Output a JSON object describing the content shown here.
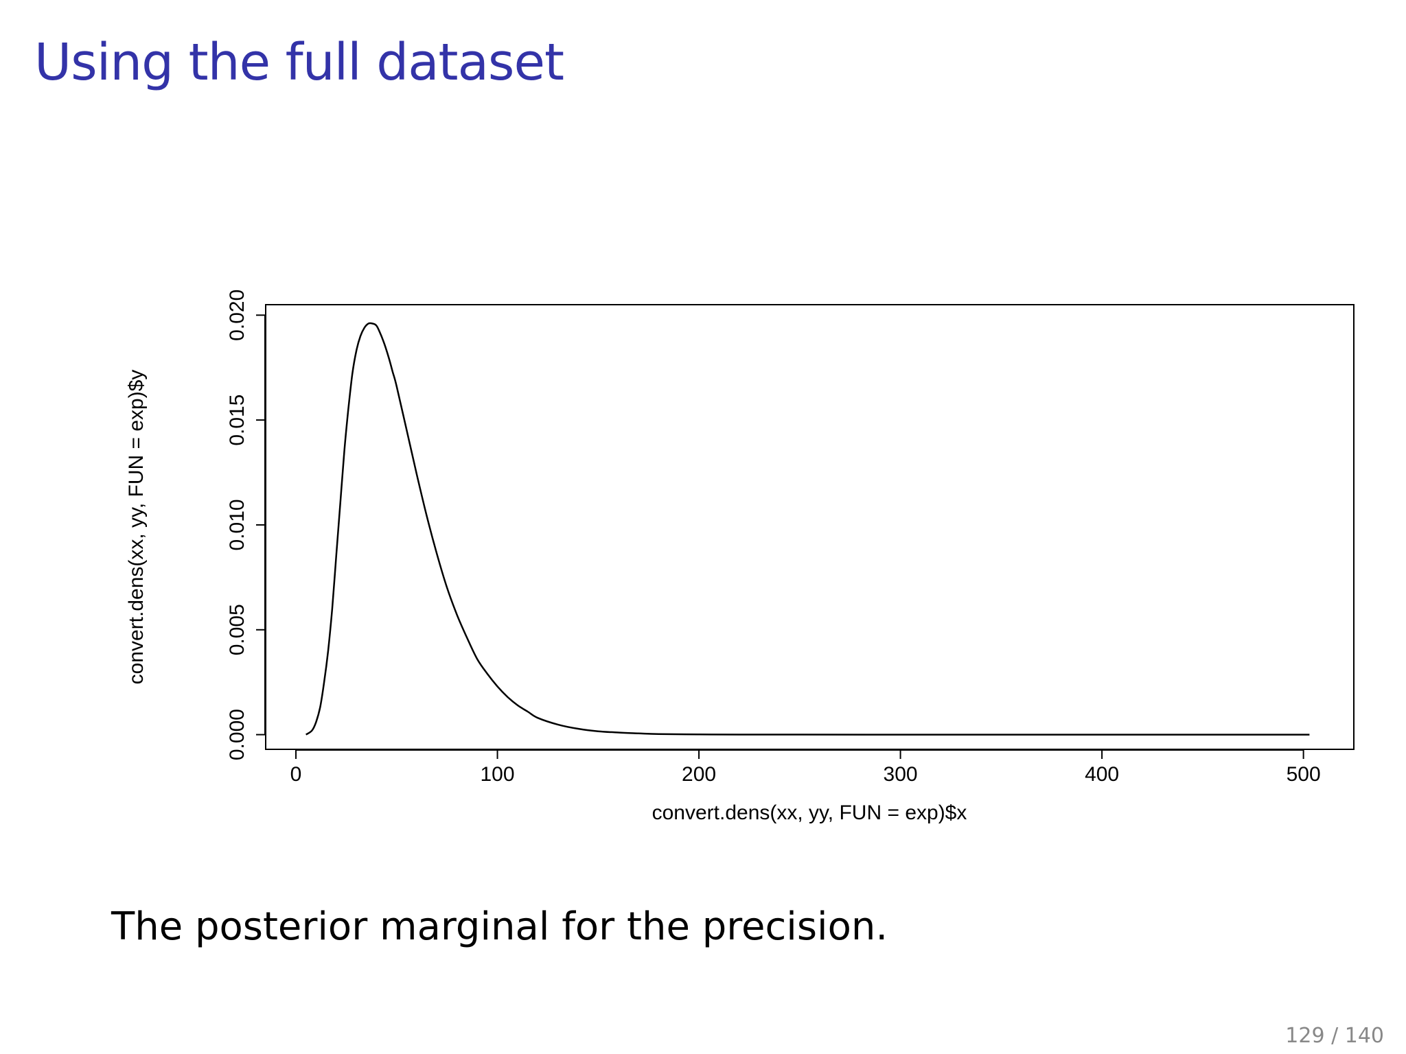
{
  "slide": {
    "title": "Using the full dataset",
    "caption": "The posterior marginal for the precision.",
    "page_number": "129 / 140",
    "title_color": "#3333a8"
  },
  "chart_data": {
    "type": "line",
    "title": "",
    "xlabel": "convert.dens(xx, yy, FUN = exp)$x",
    "ylabel": "convert.dens(xx, yy, FUN = exp)$y",
    "xlim": [
      -15,
      525
    ],
    "ylim": [
      -0.0007,
      0.0205
    ],
    "xticks": [
      0,
      100,
      200,
      300,
      400,
      500
    ],
    "xtick_labels": [
      "0",
      "100",
      "200",
      "300",
      "400",
      "500"
    ],
    "yticks": [
      0.0,
      0.005,
      0.01,
      0.015,
      0.02
    ],
    "ytick_labels": [
      "0.000",
      "0.005",
      "0.010",
      "0.015",
      "0.020"
    ],
    "grid": false,
    "series": [
      {
        "x": [
          5,
          8,
          10,
          12,
          14,
          16,
          18,
          20,
          22,
          24,
          26,
          28,
          30,
          32,
          34,
          36,
          38,
          40,
          42,
          44,
          46,
          48,
          50,
          55,
          60,
          65,
          70,
          75,
          80,
          85,
          90,
          95,
          100,
          105,
          110,
          115,
          120,
          130,
          140,
          150,
          160,
          170,
          180,
          200,
          220,
          250,
          300,
          350,
          400,
          450,
          503
        ],
        "y": [
          0.0,
          0.0002,
          0.0006,
          0.0013,
          0.0025,
          0.004,
          0.006,
          0.0085,
          0.011,
          0.0135,
          0.0155,
          0.0172,
          0.0183,
          0.019,
          0.0194,
          0.0196,
          0.0196,
          0.0195,
          0.0191,
          0.0186,
          0.018,
          0.0173,
          0.0166,
          0.0145,
          0.0124,
          0.0104,
          0.0086,
          0.007,
          0.0057,
          0.0046,
          0.0036,
          0.0029,
          0.0023,
          0.0018,
          0.0014,
          0.0011,
          0.0008,
          0.00048,
          0.00028,
          0.00016,
          0.0001,
          6e-05,
          3e-05,
          1e-05,
          5e-06,
          2e-06,
          0.0,
          0.0,
          0.0,
          0.0,
          0.0
        ]
      }
    ]
  }
}
